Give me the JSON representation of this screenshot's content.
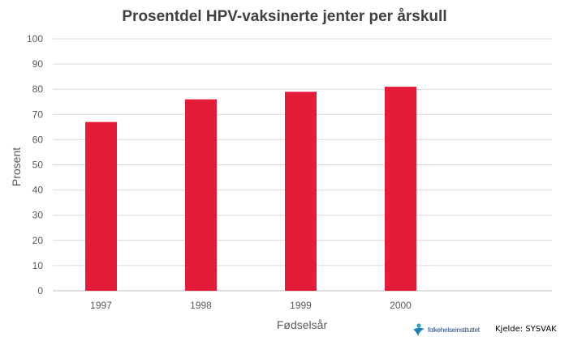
{
  "chart_data": {
    "type": "bar",
    "title": "Prosentdel HPV-vaksinerte jenter per årskull",
    "xlabel": "Fødselsår",
    "ylabel": "Prosent",
    "categories": [
      "1997",
      "1998",
      "1999",
      "2000"
    ],
    "values": [
      67,
      76,
      79,
      81
    ],
    "ylim": [
      0,
      100
    ],
    "yticks": [
      0,
      10,
      20,
      30,
      40,
      50,
      60,
      70,
      80,
      90,
      100
    ],
    "grid": true,
    "bar_color": "#e41c3a"
  },
  "footer": {
    "logo_text": "folkehelseinstituttet",
    "source": "Kjelde: SYSVAK"
  }
}
